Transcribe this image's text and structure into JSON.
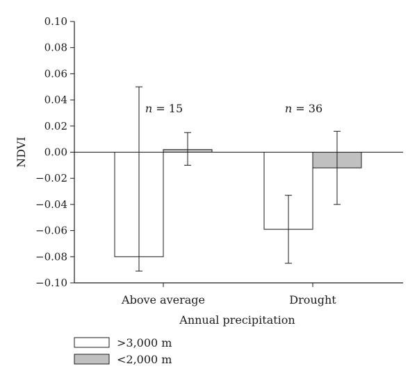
{
  "chart_data": {
    "type": "bar",
    "xlabel": "Annual precipitation",
    "ylabel": "NDVI",
    "ylim": [
      -0.1,
      0.1
    ],
    "yticks": [
      "0.10",
      "0.08",
      "0.06",
      "0.04",
      "0.02",
      "0.00",
      "−0.02",
      "−0.04",
      "−0.06",
      "−0.08",
      "−0.10"
    ],
    "ytick_values": [
      0.1,
      0.08,
      0.06,
      0.04,
      0.02,
      0.0,
      -0.02,
      -0.04,
      -0.06,
      -0.08,
      -0.1
    ],
    "categories": [
      "Above average",
      "Drought"
    ],
    "series": [
      {
        "name": ">3,000 m",
        "values": [
          -0.08,
          -0.059
        ],
        "error_high": [
          0.05,
          -0.033
        ],
        "error_low": [
          -0.091,
          -0.085
        ],
        "color": "#ffffff"
      },
      {
        "name": "<2,000 m",
        "values": [
          0.002,
          -0.012
        ],
        "error_high": [
          0.015,
          0.016
        ],
        "error_low": [
          -0.01,
          -0.04
        ],
        "color": "#c0c0c0"
      }
    ],
    "annotations": [
      {
        "italic": "n",
        "rest": " = 15",
        "category": "Above average"
      },
      {
        "italic": "n",
        "rest": " = 36",
        "category": "Drought"
      }
    ],
    "legend_placement": "bottom-left"
  }
}
